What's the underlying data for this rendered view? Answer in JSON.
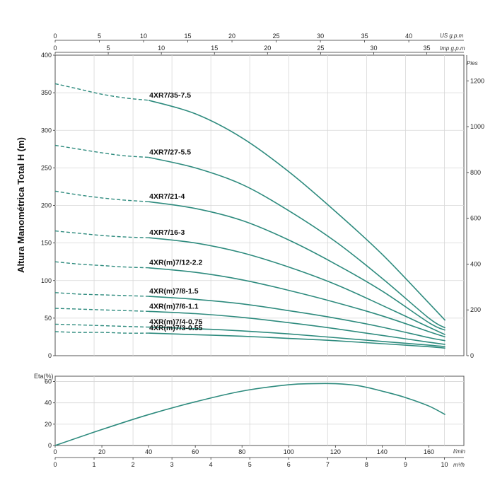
{
  "chart_data": [
    {
      "type": "line",
      "axes": {
        "ylabel": "Altura Manométrica Total H (m)",
        "ylim": [
          0,
          400
        ],
        "yticks": [
          0,
          50,
          100,
          150,
          200,
          250,
          300,
          350,
          400
        ],
        "right_axis": {
          "label": "Pies",
          "ticks": [
            0,
            200,
            400,
            600,
            800,
            1000,
            1200
          ]
        },
        "top_axis_us": {
          "label": "US g.p.m",
          "ticks": [
            0,
            5,
            10,
            15,
            20,
            25,
            30,
            35,
            40
          ]
        },
        "top_axis_imp": {
          "label": "Imp g.p.m",
          "ticks": [
            0,
            5,
            10,
            15,
            20,
            25,
            30,
            35
          ]
        },
        "xlim_lmin": [
          0,
          175
        ],
        "grid": true
      },
      "series": [
        {
          "name": "4XR7/35-7.5",
          "dashed_x": [
            0,
            10,
            20,
            30,
            40
          ],
          "dashed_y": [
            362,
            355,
            348,
            343,
            340
          ],
          "solid_x": [
            40,
            60,
            80,
            100,
            120,
            140,
            160,
            167
          ],
          "solid_y": [
            340,
            322,
            290,
            245,
            192,
            135,
            70,
            47
          ]
        },
        {
          "name": "4XR7/27-5.5",
          "dashed_x": [
            0,
            10,
            20,
            30,
            40
          ],
          "dashed_y": [
            280,
            275,
            270,
            266,
            264
          ],
          "solid_x": [
            40,
            60,
            80,
            100,
            120,
            140,
            160,
            167
          ],
          "solid_y": [
            264,
            250,
            228,
            193,
            152,
            103,
            50,
            37
          ]
        },
        {
          "name": "4XR7/21-4",
          "dashed_x": [
            0,
            10,
            20,
            30,
            40
          ],
          "dashed_y": [
            219,
            214,
            210,
            207,
            205
          ],
          "solid_x": [
            40,
            60,
            80,
            100,
            120,
            140,
            160,
            167
          ],
          "solid_y": [
            205,
            196,
            180,
            154,
            122,
            86,
            44,
            34
          ]
        },
        {
          "name": "4XR7/16-3",
          "dashed_x": [
            0,
            10,
            20,
            30,
            40
          ],
          "dashed_y": [
            166,
            163,
            160,
            158,
            157
          ],
          "solid_x": [
            40,
            60,
            80,
            100,
            120,
            140,
            160,
            167
          ],
          "solid_y": [
            157,
            150,
            137,
            118,
            95,
            67,
            38,
            28
          ]
        },
        {
          "name": "4XR(m)7/12-2.2",
          "dashed_x": [
            0,
            10,
            20,
            30,
            40
          ],
          "dashed_y": [
            125,
            122,
            120,
            118,
            117
          ],
          "solid_x": [
            40,
            60,
            80,
            100,
            120,
            140,
            160,
            167
          ],
          "solid_y": [
            117,
            111,
            101,
            87,
            71,
            53,
            32,
            25
          ]
        },
        {
          "name": "4XR(m)7/8-1.5",
          "dashed_x": [
            0,
            10,
            20,
            30,
            40
          ],
          "dashed_y": [
            84,
            82,
            81,
            80,
            79
          ],
          "solid_x": [
            40,
            60,
            80,
            100,
            120,
            140,
            160,
            167
          ],
          "solid_y": [
            79,
            75,
            69,
            60,
            50,
            38,
            24,
            20
          ]
        },
        {
          "name": "4XR(m)7/6-1.1",
          "dashed_x": [
            0,
            10,
            20,
            30,
            40
          ],
          "dashed_y": [
            63,
            62,
            61,
            60,
            59
          ],
          "solid_x": [
            40,
            60,
            80,
            100,
            120,
            140,
            160,
            167
          ],
          "solid_y": [
            59,
            56,
            51,
            44,
            36,
            27,
            18,
            15
          ]
        },
        {
          "name": "4XR(m)7/4-0.75",
          "dashed_x": [
            0,
            10,
            20,
            30,
            40
          ],
          "dashed_y": [
            42,
            41,
            40,
            39,
            38
          ],
          "solid_x": [
            40,
            60,
            80,
            100,
            120,
            140,
            160,
            167
          ],
          "solid_y": [
            38,
            36,
            33,
            29,
            24,
            19,
            14,
            12
          ]
        },
        {
          "name": "4XR(m)7/3-0.55",
          "dashed_x": [
            0,
            10,
            20,
            30,
            40
          ],
          "dashed_y": [
            32,
            31,
            31,
            30,
            30
          ],
          "solid_x": [
            40,
            60,
            80,
            100,
            120,
            140,
            160,
            167
          ],
          "solid_y": [
            30,
            28,
            26,
            23,
            20,
            16,
            12,
            10
          ]
        }
      ]
    },
    {
      "type": "line",
      "axes": {
        "ylabel": "Eta(%)",
        "ylim": [
          0,
          65
        ],
        "yticks": [
          0,
          20,
          40,
          60
        ],
        "x_lmin": {
          "label": "l/min",
          "ticks": [
            0,
            20,
            40,
            60,
            80,
            100,
            120,
            140,
            160
          ]
        },
        "x_m3h": {
          "label": "m³/h",
          "ticks": [
            0,
            1,
            2,
            3,
            4,
            5,
            6,
            7,
            8,
            9,
            10
          ]
        },
        "xlim_lmin": [
          0,
          175
        ],
        "grid": true
      },
      "series": [
        {
          "name": "",
          "x": [
            0,
            20,
            40,
            60,
            80,
            100,
            110,
            120,
            130,
            140,
            150,
            160,
            167
          ],
          "y": [
            0,
            15,
            29,
            41,
            51,
            57,
            58,
            58,
            56,
            51,
            45,
            37,
            29
          ]
        }
      ]
    }
  ],
  "colors": {
    "curve": "#2e8b7e",
    "grid": "#d7d7d7",
    "frame": "#555555"
  }
}
